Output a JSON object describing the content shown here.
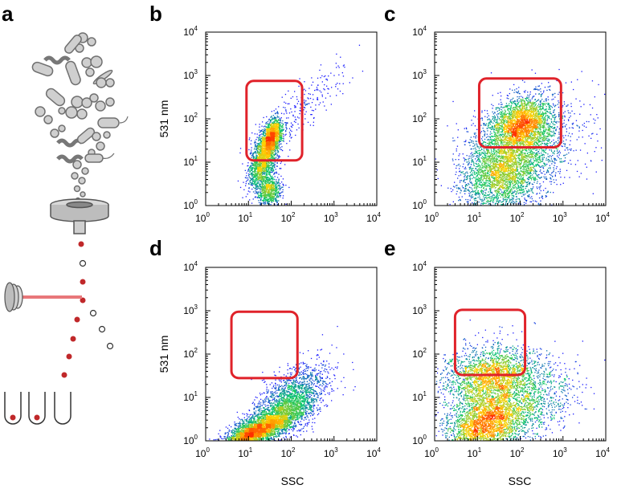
{
  "colors": {
    "gate": "#e0222a",
    "droplet": "#c0282a",
    "laser": "#e8777a",
    "laser_head": "#a0a0a0",
    "cell_fill": "#cfcfcf",
    "cell_stroke": "#707070",
    "density_low": "#1a1aff",
    "density_mid": "#00c46a",
    "density_high": "#ffd200",
    "density_peak": "#ff3000"
  },
  "panel_a": {
    "letter": "a",
    "icons": [
      "bacteria-cluster-icon",
      "sorting-nozzle-icon",
      "laser-icon",
      "droplet-stream-icon",
      "collection-tube-icon"
    ],
    "tubes": [
      {
        "has_cell": true
      },
      {
        "has_cell": true
      },
      {
        "has_cell": false
      }
    ]
  },
  "chart_data": [
    {
      "panel": "b",
      "type": "scatter",
      "subtype": "flow-cytometry-density",
      "xlabel": "",
      "ylabel": "531 nm",
      "xlim": [
        1,
        10000
      ],
      "ylim": [
        1,
        10000
      ],
      "log_x": true,
      "log_y": true,
      "xticks": [
        "10",
        "10",
        "10",
        "10",
        "10"
      ],
      "xtick_exponents": [
        "0",
        "1",
        "2",
        "3",
        "4"
      ],
      "yticks": [
        "10",
        "10",
        "10",
        "10",
        "10"
      ],
      "ytick_exponents": [
        "0",
        "1",
        "2",
        "3",
        "4"
      ],
      "gate": {
        "x": [
          9,
          180
        ],
        "y": [
          11,
          750
        ]
      },
      "populations": [
        {
          "cx": 22,
          "cy": 12,
          "sx": 0.17,
          "sy": 0.35,
          "rho": 0.5,
          "n": 1600
        },
        {
          "cx": 35,
          "cy": 40,
          "sx": 0.13,
          "sy": 0.22,
          "rho": 0.4,
          "n": 1200
        },
        {
          "cx": 30,
          "cy": 2.2,
          "sx": 0.14,
          "sy": 0.18,
          "rho": 0.2,
          "n": 700
        },
        {
          "cx": 200,
          "cy": 200,
          "sx": 0.5,
          "sy": 0.5,
          "rho": 0.8,
          "n": 220
        }
      ]
    },
    {
      "panel": "c",
      "type": "scatter",
      "subtype": "flow-cytometry-density",
      "xlabel": "",
      "ylabel": "",
      "xlim": [
        1,
        10000
      ],
      "ylim": [
        1,
        10000
      ],
      "log_x": true,
      "log_y": true,
      "xticks": [
        "10",
        "10",
        "10",
        "10",
        "10"
      ],
      "xtick_exponents": [
        "0",
        "1",
        "2",
        "3",
        "4"
      ],
      "yticks": [
        "10",
        "10",
        "10",
        "10",
        "10"
      ],
      "ytick_exponents": [
        "0",
        "1",
        "2",
        "3",
        "4"
      ],
      "gate": {
        "x": [
          11,
          900
        ],
        "y": [
          22,
          850
        ]
      },
      "populations": [
        {
          "cx": 100,
          "cy": 80,
          "sx": 0.35,
          "sy": 0.3,
          "rho": 0.2,
          "n": 2200
        },
        {
          "cx": 40,
          "cy": 6,
          "sx": 0.5,
          "sy": 0.45,
          "rho": 0.2,
          "n": 2600
        },
        {
          "cx": 120,
          "cy": 25,
          "sx": 0.7,
          "sy": 0.6,
          "rho": 0.3,
          "n": 1400
        }
      ]
    },
    {
      "panel": "d",
      "type": "scatter",
      "subtype": "flow-cytometry-density",
      "xlabel": "SSC",
      "ylabel": "531 nm",
      "xlim": [
        1,
        10000
      ],
      "ylim": [
        1,
        10000
      ],
      "log_x": true,
      "log_y": true,
      "xticks": [
        "10",
        "10",
        "10",
        "10",
        "10"
      ],
      "xtick_exponents": [
        "0",
        "1",
        "2",
        "3",
        "4"
      ],
      "yticks": [
        "10",
        "10",
        "10",
        "10",
        "10"
      ],
      "ytick_exponents": [
        "0",
        "1",
        "2",
        "3",
        "4"
      ],
      "gate": {
        "x": [
          4,
          140
        ],
        "y": [
          28,
          950
        ]
      },
      "populations": [
        {
          "cx": 25,
          "cy": 2.2,
          "sx": 0.5,
          "sy": 0.3,
          "rho": 0.75,
          "n": 3200
        },
        {
          "cx": 10,
          "cy": 1.4,
          "sx": 0.25,
          "sy": 0.15,
          "rho": 0.6,
          "n": 900
        },
        {
          "cx": 100,
          "cy": 10,
          "sx": 0.45,
          "sy": 0.4,
          "rho": 0.6,
          "n": 1500
        }
      ]
    },
    {
      "panel": "e",
      "type": "scatter",
      "subtype": "flow-cytometry-density",
      "xlabel": "SSC",
      "ylabel": "",
      "xlim": [
        1,
        10000
      ],
      "ylim": [
        1,
        10000
      ],
      "log_x": true,
      "log_y": true,
      "xticks": [
        "10",
        "10",
        "10",
        "10",
        "10"
      ],
      "xtick_exponents": [
        "0",
        "1",
        "2",
        "3",
        "4"
      ],
      "yticks": [
        "10",
        "10",
        "10",
        "10",
        "10"
      ],
      "ytick_exponents": [
        "0",
        "1",
        "2",
        "3",
        "4"
      ],
      "gate": {
        "x": [
          3,
          130
        ],
        "y": [
          33,
          1050
        ]
      },
      "populations": [
        {
          "cx": 15,
          "cy": 2.5,
          "sx": 0.45,
          "sy": 0.35,
          "rho": 0.3,
          "n": 2600
        },
        {
          "cx": 20,
          "cy": 30,
          "sx": 0.55,
          "sy": 0.35,
          "rho": 0.1,
          "n": 2400
        },
        {
          "cx": 150,
          "cy": 8,
          "sx": 0.55,
          "sy": 0.5,
          "rho": 0.3,
          "n": 1000
        }
      ]
    }
  ]
}
